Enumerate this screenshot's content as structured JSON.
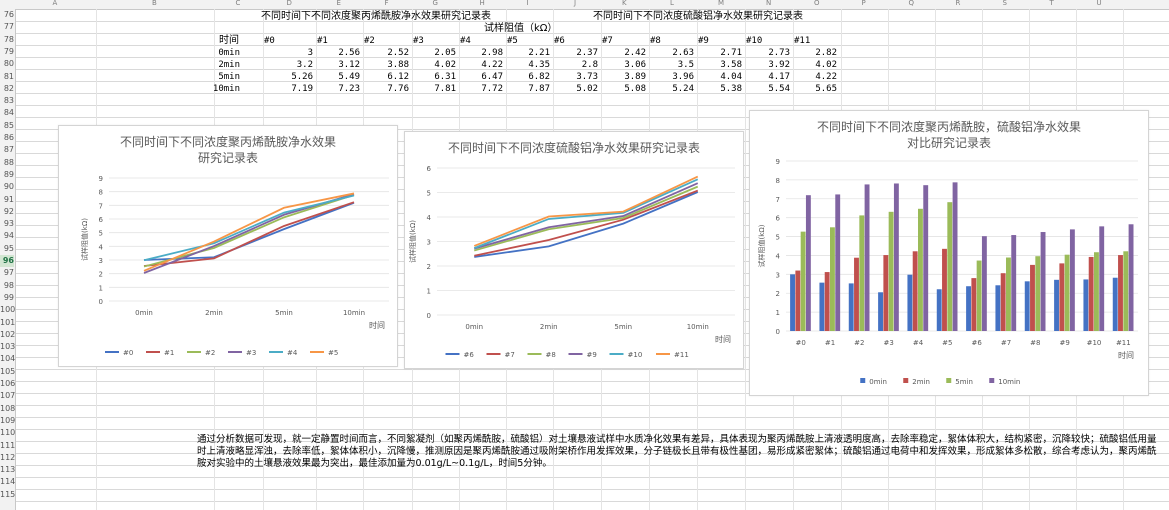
{
  "column_letters": [
    "A",
    "B",
    "C",
    "D",
    "E",
    "F",
    "G",
    "H",
    "I",
    "J",
    "K",
    "L",
    "M",
    "N",
    "O",
    "P",
    "Q",
    "R",
    "S",
    "T",
    "U"
  ],
  "row_numbers": [
    76,
    77,
    78,
    79,
    80,
    81,
    82,
    83,
    84,
    85,
    86,
    87,
    88,
    89,
    90,
    91,
    92,
    93,
    94,
    95,
    96,
    97,
    98,
    99,
    100,
    101,
    102,
    103,
    104,
    105,
    106,
    107,
    108,
    109,
    110,
    111,
    112,
    113,
    114,
    115
  ],
  "selected_row": 96,
  "table": {
    "title_left": "不同时间下不同浓度聚丙烯酰胺净水效果研究记录表",
    "title_right": "不同时间下不同浓度硫酸铝净水效果研究记录表",
    "subtitle": "试样阻值（kΩ）",
    "header_time": "时间",
    "sample_headers": [
      "#0",
      "#1",
      "#2",
      "#3",
      "#4",
      "#5",
      "#6",
      "#7",
      "#8",
      "#9",
      "#10",
      "#11"
    ],
    "rows": [
      {
        "time": "0min",
        "values": [
          "3",
          "2.56",
          "2.52",
          "2.05",
          "2.98",
          "2.21",
          "2.37",
          "2.42",
          "2.63",
          "2.71",
          "2.73",
          "2.82"
        ]
      },
      {
        "time": "2min",
        "values": [
          "3.2",
          "3.12",
          "3.88",
          "4.02",
          "4.22",
          "4.35",
          "2.8",
          "3.06",
          "3.5",
          "3.58",
          "3.92",
          "4.02"
        ]
      },
      {
        "time": "5min",
        "values": [
          "5.26",
          "5.49",
          "6.12",
          "6.31",
          "6.47",
          "6.82",
          "3.73",
          "3.89",
          "3.96",
          "4.04",
          "4.17",
          "4.22"
        ]
      },
      {
        "time": "10min",
        "values": [
          "7.19",
          "7.23",
          "7.76",
          "7.81",
          "7.72",
          "7.87",
          "5.02",
          "5.08",
          "5.24",
          "5.38",
          "5.54",
          "5.65"
        ]
      }
    ]
  },
  "chart_data": [
    {
      "type": "line",
      "title": "不同时间下不同浓度聚丙烯酰胺净水效果研究记录表",
      "xlabel": "时间",
      "ylabel": "试样阻值(kΩ)",
      "categories": [
        "0min",
        "2min",
        "5min",
        "10min"
      ],
      "ylim": [
        0,
        9
      ],
      "yticks": [
        0,
        1,
        2,
        3,
        4,
        5,
        6,
        7,
        8,
        9
      ],
      "legend": "bottom",
      "series": [
        {
          "name": "#0",
          "color": "#4472c4",
          "values": [
            3,
            3.2,
            5.26,
            7.19
          ]
        },
        {
          "name": "#1",
          "color": "#c0504d",
          "values": [
            2.56,
            3.12,
            5.49,
            7.23
          ]
        },
        {
          "name": "#2",
          "color": "#9bbb59",
          "values": [
            2.52,
            3.88,
            6.12,
            7.76
          ]
        },
        {
          "name": "#3",
          "color": "#8064a2",
          "values": [
            2.05,
            4.02,
            6.31,
            7.81
          ]
        },
        {
          "name": "#4",
          "color": "#4bacc6",
          "values": [
            2.98,
            4.22,
            6.47,
            7.72
          ]
        },
        {
          "name": "#5",
          "color": "#f79646",
          "values": [
            2.21,
            4.35,
            6.82,
            7.87
          ]
        }
      ]
    },
    {
      "type": "line",
      "title": "不同时间下不同浓度硫酸铝净水效果研究记录表",
      "xlabel": "时间",
      "ylabel": "试样阻值(kΩ)",
      "categories": [
        "0min",
        "2min",
        "5min",
        "10min"
      ],
      "ylim": [
        0,
        6
      ],
      "yticks": [
        0,
        1,
        2,
        3,
        4,
        5,
        6
      ],
      "legend": "bottom",
      "series": [
        {
          "name": "#6",
          "color": "#4472c4",
          "values": [
            2.37,
            2.8,
            3.73,
            5.02
          ]
        },
        {
          "name": "#7",
          "color": "#c0504d",
          "values": [
            2.42,
            3.06,
            3.89,
            5.08
          ]
        },
        {
          "name": "#8",
          "color": "#9bbb59",
          "values": [
            2.63,
            3.5,
            3.96,
            5.24
          ]
        },
        {
          "name": "#9",
          "color": "#8064a2",
          "values": [
            2.71,
            3.58,
            4.04,
            5.38
          ]
        },
        {
          "name": "#10",
          "color": "#4bacc6",
          "values": [
            2.73,
            3.92,
            4.17,
            5.54
          ]
        },
        {
          "name": "#11",
          "color": "#f79646",
          "values": [
            2.82,
            4.02,
            4.22,
            5.65
          ]
        }
      ]
    },
    {
      "type": "bar",
      "title": "不同时间下不同浓度聚丙烯酰胺，硫酸铝净水效果对比研究记录表",
      "xlabel": "时间",
      "ylabel": "试样阻值(kΩ)",
      "categories": [
        "#0",
        "#1",
        "#2",
        "#3",
        "#4",
        "#5",
        "#6",
        "#7",
        "#8",
        "#9",
        "#10",
        "#11"
      ],
      "ylim": [
        0,
        9
      ],
      "yticks": [
        0,
        1,
        2,
        3,
        4,
        5,
        6,
        7,
        8,
        9
      ],
      "legend": "bottom",
      "series": [
        {
          "name": "0min",
          "color": "#4472c4",
          "values": [
            3,
            2.56,
            2.52,
            2.05,
            2.98,
            2.21,
            2.37,
            2.42,
            2.63,
            2.71,
            2.73,
            2.82
          ]
        },
        {
          "name": "2min",
          "color": "#c0504d",
          "values": [
            3.2,
            3.12,
            3.88,
            4.02,
            4.22,
            4.35,
            2.8,
            3.06,
            3.5,
            3.58,
            3.92,
            4.02
          ]
        },
        {
          "name": "5min",
          "color": "#9bbb59",
          "values": [
            5.26,
            5.49,
            6.12,
            6.31,
            6.47,
            6.82,
            3.73,
            3.89,
            3.96,
            4.04,
            4.17,
            4.22
          ]
        },
        {
          "name": "10min",
          "color": "#8064a2",
          "values": [
            7.19,
            7.23,
            7.76,
            7.81,
            7.72,
            7.87,
            5.02,
            5.08,
            5.24,
            5.38,
            5.54,
            5.65
          ]
        }
      ]
    }
  ],
  "note": "通过分析数据可发现，就一定静置时间而言，不同絮凝剂（如聚丙烯酰胺，硫酸铝）对土壤悬液试样中水质净化效果有差异，具体表现为聚丙烯酰胺上清液透明度高，去除率稳定，絮体体积大，结构紧密，沉降较快；硫酸铝低用量时上清液略显浑浊，去除率低，絮体体积小，沉降慢，推测原因是聚丙烯酰胺通过吸附架桥作用发挥效果，分子链极长且带有极性基团，易形成紧密絮体；硫酸铝通过电荷中和发挥效果，形成絮体多松散，综合考虑认为，聚丙烯酰胺对实验中的土壤悬液效果最为突出，最佳添加量为0.01g/L~0.1g/L，时间5分钟。"
}
